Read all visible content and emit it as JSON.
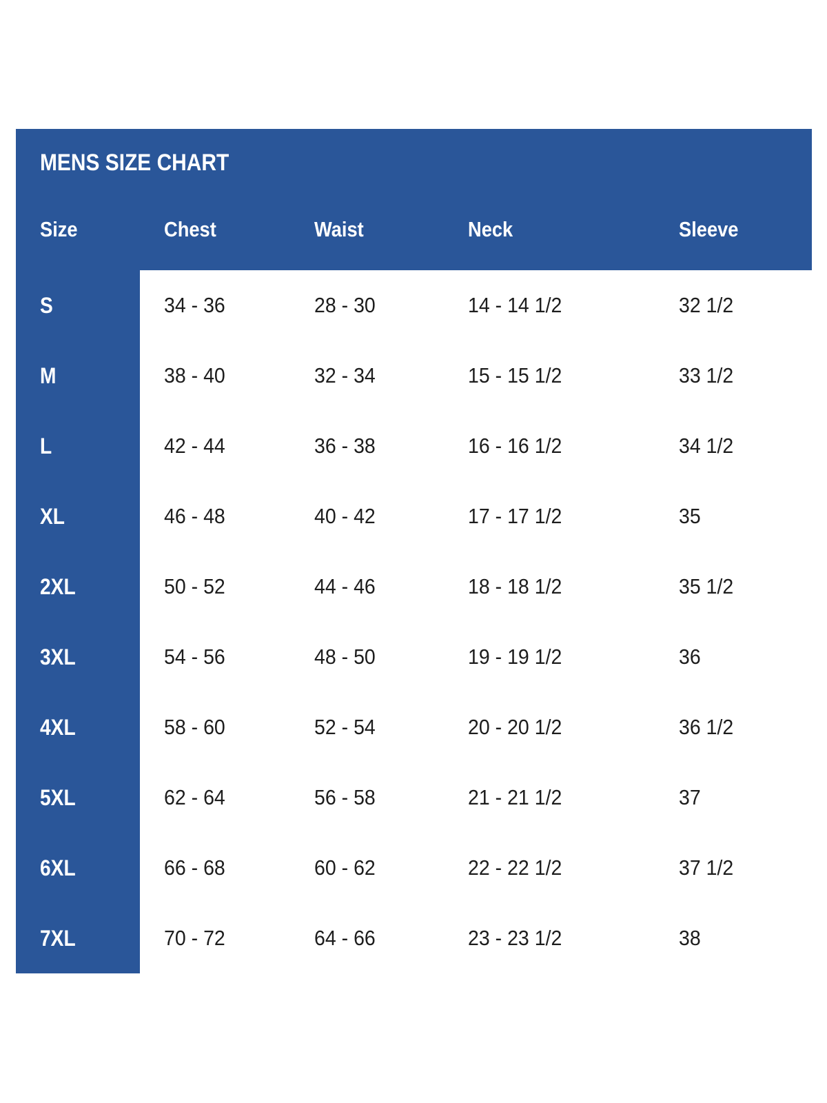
{
  "chart_data": {
    "type": "table",
    "title": "MENS SIZE CHART",
    "columns": [
      "Size",
      "Chest",
      "Waist",
      "Neck",
      "Sleeve"
    ],
    "rows": [
      {
        "size": "S",
        "chest": "34 - 36",
        "waist": "28 - 30",
        "neck": "14 - 14 1/2",
        "sleeve": "32 1/2"
      },
      {
        "size": "M",
        "chest": "38 - 40",
        "waist": "32 - 34",
        "neck": "15 - 15 1/2",
        "sleeve": "33 1/2"
      },
      {
        "size": "L",
        "chest": "42 - 44",
        "waist": "36 - 38",
        "neck": "16 - 16 1/2",
        "sleeve": "34 1/2"
      },
      {
        "size": "XL",
        "chest": "46 - 48",
        "waist": "40 - 42",
        "neck": "17 - 17 1/2",
        "sleeve": "35"
      },
      {
        "size": "2XL",
        "chest": "50 - 52",
        "waist": "44 - 46",
        "neck": "18 - 18 1/2",
        "sleeve": "35 1/2"
      },
      {
        "size": "3XL",
        "chest": "54 - 56",
        "waist": "48 - 50",
        "neck": "19 - 19 1/2",
        "sleeve": "36"
      },
      {
        "size": "4XL",
        "chest": "58 - 60",
        "waist": "52 - 54",
        "neck": "20 - 20 1/2",
        "sleeve": "36 1/2"
      },
      {
        "size": "5XL",
        "chest": "62 - 64",
        "waist": "56 - 58",
        "neck": "21 - 21 1/2",
        "sleeve": "37"
      },
      {
        "size": "6XL",
        "chest": "66 - 68",
        "waist": "60 - 62",
        "neck": "22 - 22 1/2",
        "sleeve": "37 1/2"
      },
      {
        "size": "7XL",
        "chest": "70 - 72",
        "waist": "64 - 66",
        "neck": "23 - 23 1/2",
        "sleeve": "38"
      }
    ],
    "layout": {
      "grid": "off",
      "header_position": "top",
      "size_column_position": "left"
    }
  },
  "colors": {
    "panel_blue": "#2a5699",
    "header_text": "#ffffff",
    "data_text": "#1d1d1d",
    "background": "#ffffff"
  }
}
